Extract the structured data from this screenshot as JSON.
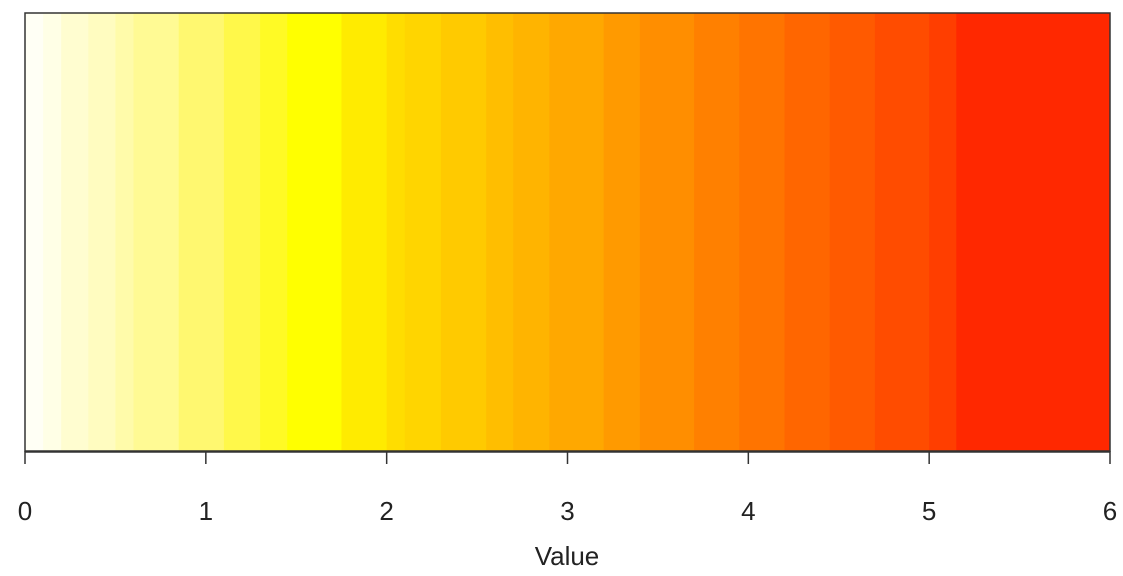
{
  "chart_data": {
    "type": "colorbar",
    "xlabel": "Value",
    "xlim": [
      0,
      6
    ],
    "xticks": [
      0,
      1,
      2,
      3,
      4,
      5,
      6
    ],
    "breaks": [
      0,
      0.1,
      0.2,
      0.35,
      0.5,
      0.6,
      0.85,
      1.1,
      1.3,
      1.45,
      1.75,
      2.0,
      2.1,
      2.3,
      2.55,
      2.7,
      2.9,
      3.2,
      3.4,
      3.7,
      3.95,
      4.2,
      4.45,
      4.7,
      5.0,
      5.15,
      6
    ],
    "colors": [
      "#FFFFF5",
      "#FFFFE6",
      "#FFFDD0",
      "#FFFCC0",
      "#FFFBAA",
      "#FFFA94",
      "#FFF870",
      "#FFF84A",
      "#FFFA25",
      "#FFFF00",
      "#FFEB00",
      "#FFDD00",
      "#FFD500",
      "#FFCA00",
      "#FFBE00",
      "#FFB400",
      "#FFA800",
      "#FF9A00",
      "#FF8E00",
      "#FF8000",
      "#FF7400",
      "#FF6600",
      "#FF5A00",
      "#FF4C00",
      "#FF3E00",
      "#FF2800"
    ]
  }
}
